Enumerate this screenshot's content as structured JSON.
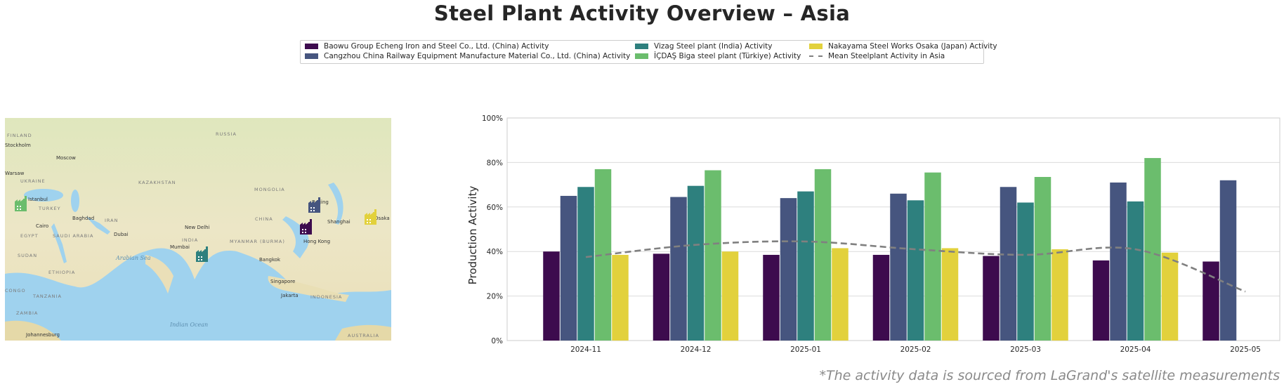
{
  "title": "Steel Plant Activity Overview – Asia",
  "source_note": "*The activity data is sourced from LaGrand's satellite measurements",
  "legend": [
    {
      "label": "Baowu Group Echeng Iron and Steel Co., Ltd. (China) Activity",
      "color": "#3d0b4e",
      "kind": "bar"
    },
    {
      "label": "Cangzhou China Railway Equipment Manufacture Material Co., Ltd. (China) Activity",
      "color": "#46557f",
      "kind": "bar"
    },
    {
      "label": "Vizag Steel plant (India) Activity",
      "color": "#2e807e",
      "kind": "bar"
    },
    {
      "label": "İÇDAŞ Biga steel plant (Türkiye) Activity",
      "color": "#6bbd6d",
      "kind": "bar"
    },
    {
      "label": "Nakayama Steel Works Osaka (Japan) Activity",
      "color": "#e2d13c",
      "kind": "bar"
    },
    {
      "label": "Mean Steelplant Activity in Asia",
      "color": "#808080",
      "kind": "dashed-line"
    }
  ],
  "map": {
    "cities": [
      "Stockholm",
      "Moscow",
      "Warsaw",
      "Istanbul",
      "Baghdad",
      "Cairo",
      "Dubai",
      "New Delhi",
      "Mumbai",
      "Beijing",
      "Shanghai",
      "Osaka",
      "Hong Kong",
      "Bangkok",
      "Singapore",
      "Jakarta",
      "Johannesburg"
    ],
    "countries": [
      "RUSSIA",
      "FINLAND",
      "UKRAINE",
      "KAZAKHSTAN",
      "MONGOLIA",
      "TURKEY",
      "IRAN",
      "CHINA",
      "EGYPT",
      "SAUDI ARABIA",
      "INDIA",
      "MYANMAR (BURMA)",
      "SUDAN",
      "ETHIOPIA",
      "TANZANIA",
      "ZAMBIA",
      "CONGO",
      "INDONESIA",
      "AUSTRALIA"
    ],
    "seas": [
      "Arabian Sea",
      "Indian Ocean"
    ],
    "markers": [
      {
        "plant": "İÇDAŞ Biga steel plant (Türkiye)",
        "color": "#6bbd6d",
        "icon": "factory-icon"
      },
      {
        "plant": "Vizag Steel plant (India)",
        "color": "#2e807e",
        "icon": "factory-icon"
      },
      {
        "plant": "Baowu Group Echeng Iron and Steel Co., Ltd. (China)",
        "color": "#3d0b4e",
        "icon": "factory-icon"
      },
      {
        "plant": "Cangzhou China Railway Equipment Manufacture Material Co., Ltd. (China)",
        "color": "#46557f",
        "icon": "factory-icon"
      },
      {
        "plant": "Nakayama Steel Works Osaka (Japan)",
        "color": "#e2d13c",
        "icon": "factory-icon"
      }
    ]
  },
  "chart_data": {
    "type": "bar",
    "ylabel": "Production Activity",
    "xlabel": "",
    "ylim": [
      0,
      100
    ],
    "yticks": [
      "0%",
      "20%",
      "40%",
      "60%",
      "80%",
      "100%"
    ],
    "grid": true,
    "categories": [
      "2024-11",
      "2024-12",
      "2025-01",
      "2025-02",
      "2025-03",
      "2025-04",
      "2025-05"
    ],
    "series": [
      {
        "name": "Baowu Group Echeng Iron and Steel Co., Ltd. (China) Activity",
        "color": "#3d0b4e",
        "values": [
          40,
          39,
          38.5,
          38.5,
          38,
          36,
          35.5
        ]
      },
      {
        "name": "Cangzhou China Railway Equipment Manufacture Material Co., Ltd. (China) Activity",
        "color": "#46557f",
        "values": [
          65,
          64.5,
          64,
          66,
          69,
          71,
          72
        ]
      },
      {
        "name": "Vizag Steel plant (India) Activity",
        "color": "#2e807e",
        "values": [
          69,
          69.5,
          67,
          63,
          62,
          62.5,
          null
        ]
      },
      {
        "name": "İÇDAŞ Biga steel plant (Türkiye) Activity",
        "color": "#6bbd6d",
        "values": [
          77,
          76.5,
          77,
          75.5,
          73.5,
          82,
          null
        ]
      },
      {
        "name": "Nakayama Steel Works Osaka (Japan) Activity",
        "color": "#e2d13c",
        "values": [
          38.5,
          40,
          41.5,
          41.5,
          41,
          39.5,
          null
        ]
      }
    ],
    "mean_line": {
      "name": "Mean Steelplant Activity in Asia",
      "color": "#808080",
      "style": "dashed",
      "values": [
        37.5,
        43,
        44.5,
        41,
        38.5,
        41,
        22
      ]
    }
  }
}
